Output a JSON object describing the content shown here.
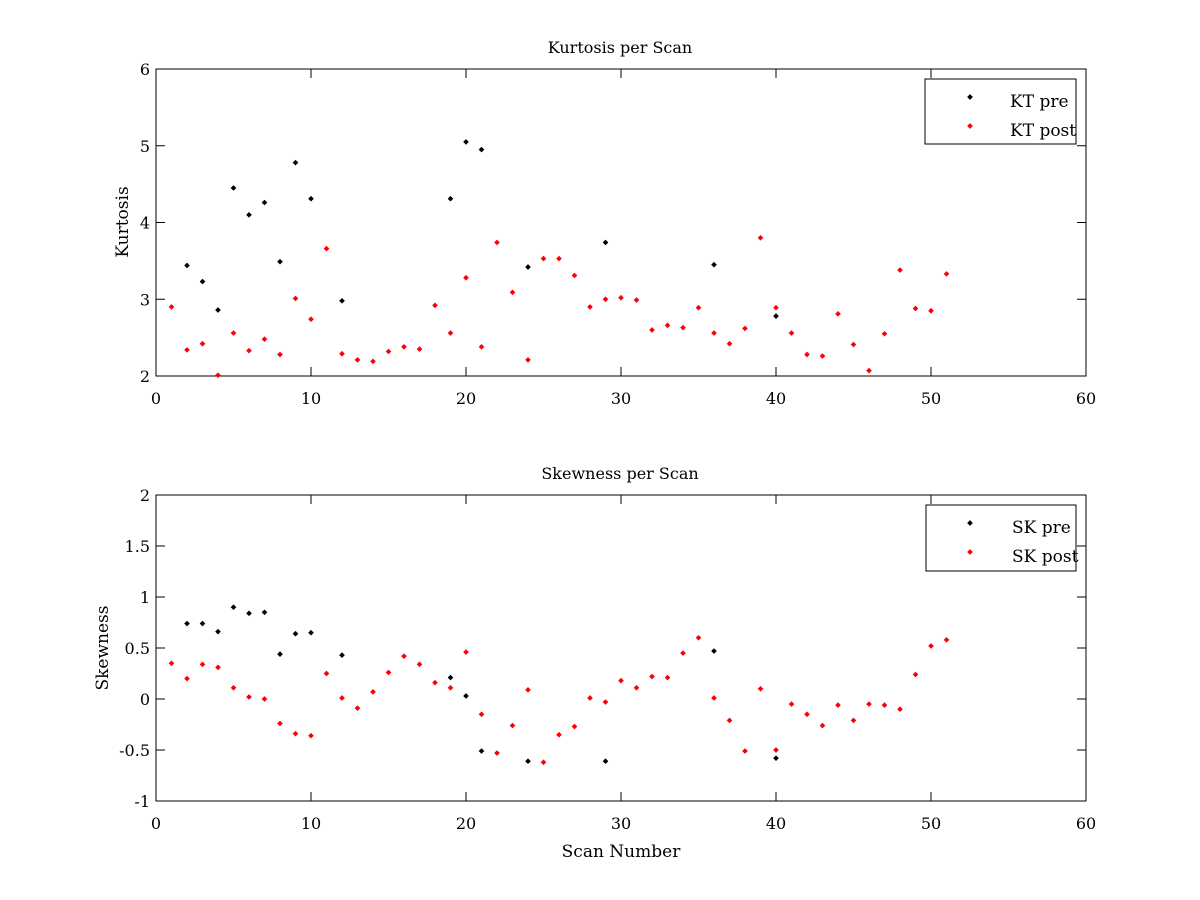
{
  "chart_data": [
    {
      "type": "scatter",
      "title": "Kurtosis per Scan",
      "xlabel": "",
      "ylabel": "Kurtosis",
      "xlim": [
        0,
        60
      ],
      "ylim": [
        2,
        6
      ],
      "xticks": [
        "0",
        "10",
        "20",
        "30",
        "40",
        "50",
        "60"
      ],
      "yticks": [
        "2",
        "3",
        "4",
        "5",
        "6"
      ],
      "grid": false,
      "legend_position": "top-right",
      "series": [
        {
          "name": "KT pre",
          "color": "#000000",
          "points": [
            [
              2,
              3.44
            ],
            [
              3,
              3.23
            ],
            [
              4,
              2.86
            ],
            [
              5,
              4.45
            ],
            [
              6,
              4.1
            ],
            [
              7,
              4.26
            ],
            [
              8,
              3.49
            ],
            [
              9,
              4.78
            ],
            [
              10,
              4.31
            ],
            [
              12,
              2.98
            ],
            [
              19,
              4.31
            ],
            [
              20,
              5.05
            ],
            [
              21,
              4.95
            ],
            [
              24,
              3.42
            ],
            [
              29,
              3.74
            ],
            [
              36,
              3.45
            ],
            [
              40,
              2.78
            ]
          ]
        },
        {
          "name": "KT post",
          "color": "#ff0000",
          "points": [
            [
              1,
              2.9
            ],
            [
              2,
              2.34
            ],
            [
              3,
              2.42
            ],
            [
              4,
              2.01
            ],
            [
              5,
              2.56
            ],
            [
              6,
              2.33
            ],
            [
              7,
              2.48
            ],
            [
              8,
              2.28
            ],
            [
              9,
              3.01
            ],
            [
              10,
              2.74
            ],
            [
              11,
              3.66
            ],
            [
              12,
              2.29
            ],
            [
              13,
              2.21
            ],
            [
              14,
              2.19
            ],
            [
              15,
              2.32
            ],
            [
              16,
              2.38
            ],
            [
              17,
              2.35
            ],
            [
              18,
              2.92
            ],
            [
              19,
              2.56
            ],
            [
              20,
              3.28
            ],
            [
              21,
              2.38
            ],
            [
              22,
              3.74
            ],
            [
              23,
              3.09
            ],
            [
              24,
              2.21
            ],
            [
              25,
              3.53
            ],
            [
              26,
              3.53
            ],
            [
              27,
              3.31
            ],
            [
              28,
              2.9
            ],
            [
              29,
              3.0
            ],
            [
              30,
              3.02
            ],
            [
              31,
              2.99
            ],
            [
              32,
              2.6
            ],
            [
              33,
              2.66
            ],
            [
              34,
              2.63
            ],
            [
              35,
              2.89
            ],
            [
              36,
              2.56
            ],
            [
              37,
              2.42
            ],
            [
              38,
              2.62
            ],
            [
              39,
              3.8
            ],
            [
              40,
              2.89
            ],
            [
              41,
              2.56
            ],
            [
              42,
              2.28
            ],
            [
              43,
              2.26
            ],
            [
              44,
              2.81
            ],
            [
              45,
              2.41
            ],
            [
              46,
              2.07
            ],
            [
              47,
              2.55
            ],
            [
              48,
              3.38
            ],
            [
              49,
              2.88
            ],
            [
              50,
              2.85
            ],
            [
              51,
              3.33
            ]
          ]
        }
      ]
    },
    {
      "type": "scatter",
      "title": "Skewness per Scan",
      "xlabel": "Scan Number",
      "ylabel": "Skewness",
      "xlim": [
        0,
        60
      ],
      "ylim": [
        -1,
        2
      ],
      "xticks": [
        "0",
        "10",
        "20",
        "30",
        "40",
        "50",
        "60"
      ],
      "yticks": [
        "-1",
        "-0.5",
        "0",
        "0.5",
        "1",
        "1.5",
        "2"
      ],
      "grid": false,
      "legend_position": "top-right",
      "series": [
        {
          "name": "SK pre",
          "color": "#000000",
          "points": [
            [
              2,
              0.74
            ],
            [
              3,
              0.74
            ],
            [
              4,
              0.66
            ],
            [
              5,
              0.9
            ],
            [
              6,
              0.84
            ],
            [
              7,
              0.85
            ],
            [
              8,
              0.44
            ],
            [
              9,
              0.64
            ],
            [
              10,
              0.65
            ],
            [
              12,
              0.43
            ],
            [
              19,
              0.21
            ],
            [
              20,
              0.03
            ],
            [
              21,
              -0.51
            ],
            [
              24,
              -0.61
            ],
            [
              29,
              -0.61
            ],
            [
              36,
              0.47
            ],
            [
              40,
              -0.58
            ]
          ]
        },
        {
          "name": "SK post",
          "color": "#ff0000",
          "points": [
            [
              1,
              0.35
            ],
            [
              2,
              0.2
            ],
            [
              3,
              0.34
            ],
            [
              4,
              0.31
            ],
            [
              5,
              0.11
            ],
            [
              6,
              0.02
            ],
            [
              7,
              0.0
            ],
            [
              8,
              -0.24
            ],
            [
              9,
              -0.34
            ],
            [
              10,
              -0.36
            ],
            [
              11,
              0.25
            ],
            [
              12,
              0.01
            ],
            [
              13,
              -0.09
            ],
            [
              14,
              0.07
            ],
            [
              15,
              0.26
            ],
            [
              16,
              0.42
            ],
            [
              17,
              0.34
            ],
            [
              18,
              0.16
            ],
            [
              19,
              0.11
            ],
            [
              20,
              0.46
            ],
            [
              21,
              -0.15
            ],
            [
              22,
              -0.53
            ],
            [
              23,
              -0.26
            ],
            [
              24,
              0.09
            ],
            [
              25,
              -0.62
            ],
            [
              26,
              -0.35
            ],
            [
              27,
              -0.27
            ],
            [
              28,
              0.01
            ],
            [
              29,
              -0.03
            ],
            [
              30,
              0.18
            ],
            [
              31,
              0.11
            ],
            [
              32,
              0.22
            ],
            [
              33,
              0.21
            ],
            [
              34,
              0.45
            ],
            [
              35,
              0.6
            ],
            [
              36,
              0.01
            ],
            [
              37,
              -0.21
            ],
            [
              38,
              -0.51
            ],
            [
              39,
              0.1
            ],
            [
              40,
              -0.5
            ],
            [
              41,
              -0.05
            ],
            [
              42,
              -0.15
            ],
            [
              43,
              -0.26
            ],
            [
              44,
              -0.06
            ],
            [
              45,
              -0.21
            ],
            [
              46,
              -0.05
            ],
            [
              47,
              -0.06
            ],
            [
              48,
              -0.1
            ],
            [
              49,
              0.24
            ],
            [
              50,
              0.52
            ],
            [
              51,
              0.58
            ]
          ]
        }
      ]
    }
  ]
}
